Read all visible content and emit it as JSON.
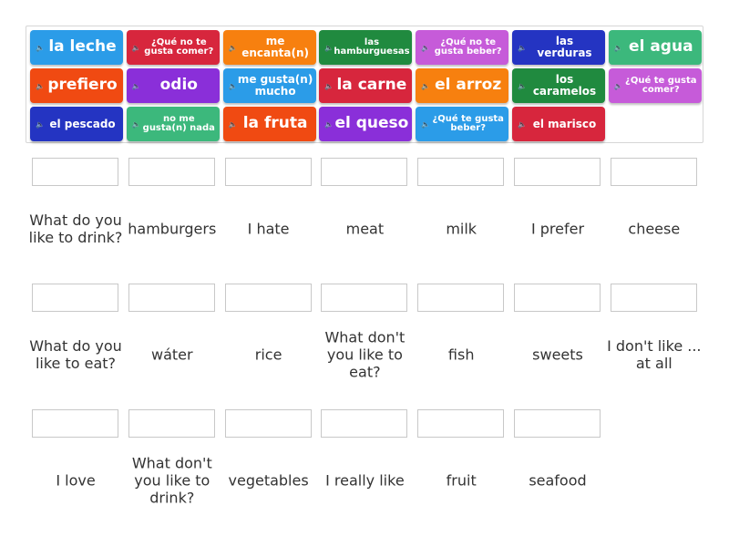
{
  "colors": {
    "lightblue": "#2b9ce8",
    "red": "#d7263d",
    "orange": "#f7800f",
    "green": "#208a3f",
    "pink": "#c65bd9",
    "darkblue": "#2434c2",
    "teal": "#3cb87c",
    "orangered": "#f04a12",
    "purple": "#8a2fd9"
  },
  "tiles": [
    {
      "text": "la leche",
      "color": "lightblue",
      "size": "big"
    },
    {
      "text": "¿Qué no te gusta comer?",
      "color": "red",
      "size": "sm"
    },
    {
      "text": "me encanta(n)",
      "color": "orange",
      "size": "mid"
    },
    {
      "text": "las hamburguesas",
      "color": "green",
      "size": "sm"
    },
    {
      "text": "¿Qué no te gusta beber?",
      "color": "pink",
      "size": "sm"
    },
    {
      "text": "las verduras",
      "color": "darkblue",
      "size": "mid"
    },
    {
      "text": "el agua",
      "color": "teal",
      "size": "big"
    },
    {
      "text": "prefiero",
      "color": "orangered",
      "size": "big"
    },
    {
      "text": "odio",
      "color": "purple",
      "size": "big"
    },
    {
      "text": "me gusta(n) mucho",
      "color": "lightblue",
      "size": "mid"
    },
    {
      "text": "la carne",
      "color": "red",
      "size": "big"
    },
    {
      "text": "el arroz",
      "color": "orange",
      "size": "big"
    },
    {
      "text": "los caramelos",
      "color": "green",
      "size": "mid"
    },
    {
      "text": "¿Qué te gusta comer?",
      "color": "pink",
      "size": "sm"
    },
    {
      "text": "el pescado",
      "color": "darkblue",
      "size": "mid"
    },
    {
      "text": "no me gusta(n) nada",
      "color": "teal",
      "size": "sm"
    },
    {
      "text": "la fruta",
      "color": "orangered",
      "size": "big"
    },
    {
      "text": "el queso",
      "color": "purple",
      "size": "big"
    },
    {
      "text": "¿Qué te gusta beber?",
      "color": "lightblue",
      "size": "sm"
    },
    {
      "text": "el marisco",
      "color": "red",
      "size": "mid"
    }
  ],
  "targets": [
    "What do you like to drink?",
    "hamburgers",
    "I hate",
    "meat",
    "milk",
    "I prefer",
    "cheese",
    "What do you like to eat?",
    "wáter",
    "rice",
    "What don't you like to eat?",
    "fish",
    "sweets",
    "I don't like ... at all",
    "I love",
    "What don't you like to drink?",
    "vegetables",
    "I really like",
    "fruit",
    "seafood"
  ]
}
